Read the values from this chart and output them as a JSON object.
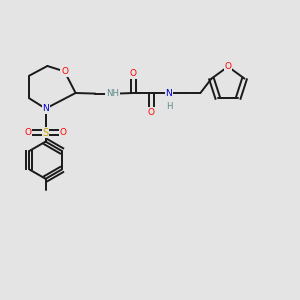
{
  "bg_color": "#e4e4e4",
  "bond_color": "#1a1a1a",
  "colors": {
    "O": "#ff0000",
    "N": "#0000cd",
    "S": "#ccaa00",
    "H": "#5a8a8a",
    "C": "#1a1a1a"
  },
  "figsize": [
    3.0,
    3.0
  ],
  "dpi": 100
}
